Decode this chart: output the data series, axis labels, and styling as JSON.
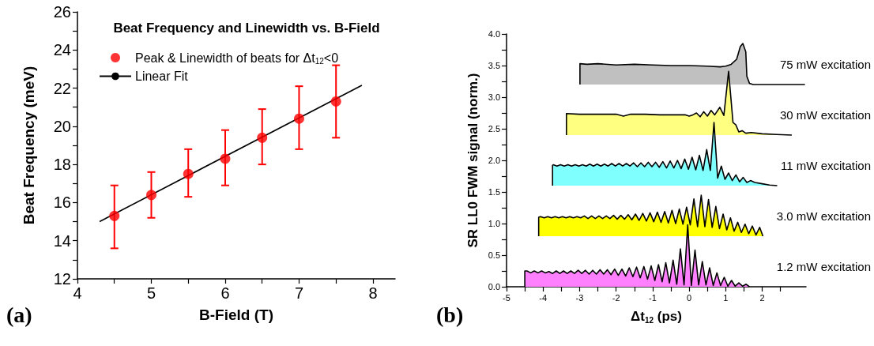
{
  "chart_data": [
    {
      "type": "scatter",
      "title": "Beat Frequency and Linewidth vs. B-Field",
      "xlabel": "B-Field (T)",
      "ylabel": "Beat Frequency (meV)",
      "annotations": [
        "(a)"
      ],
      "x": [
        4.5,
        5.0,
        5.5,
        6.0,
        6.5,
        7.0,
        7.5
      ],
      "series": [
        {
          "name": "Peak & Linewidth of beats for Δt$_{12}$<0",
          "color": "#ff0000",
          "marker": "circle",
          "values": [
            15.3,
            16.4,
            17.5,
            18.3,
            19.4,
            20.4,
            21.3
          ],
          "errors": [
            [
              13.6,
              16.9
            ],
            [
              15.2,
              17.6
            ],
            [
              16.3,
              18.8
            ],
            [
              16.9,
              19.8
            ],
            [
              18.0,
              20.9
            ],
            [
              18.8,
              22.1
            ],
            [
              19.4,
              23.2
            ]
          ]
        },
        {
          "name": "Linear Fit",
          "type": "line",
          "color": "#000000",
          "x": [
            4.3,
            7.85
          ],
          "values": [
            15.0,
            22.15
          ]
        }
      ],
      "xlim": [
        4,
        8.3
      ],
      "xticks": [
        4,
        {
          "value": 4.5,
          "label": null
        },
        5,
        {
          "value": 5.5,
          "label": null
        },
        6,
        {
          "value": 6.5,
          "label": null
        },
        7,
        {
          "value": 7.5,
          "label": null
        },
        8
      ],
      "ylim": [
        12,
        26
      ],
      "yticks": [
        12,
        {
          "value": 13,
          "label": null
        },
        14,
        {
          "value": 15,
          "label": null
        },
        16,
        {
          "value": 17,
          "label": null
        },
        18,
        {
          "value": 19,
          "label": null
        },
        20,
        {
          "value": 21,
          "label": null
        },
        22,
        {
          "value": 23,
          "label": null
        },
        24,
        {
          "value": 25,
          "label": null
        },
        26
      ],
      "legend": "top left",
      "marker": "none",
      "grid": false
    },
    {
      "type": "area",
      "xlabel": "Δt$_{12}$ (ps)",
      "ylabel": "SR LL0 FWM signal (norm.)",
      "annotations": [
        "(b)"
      ],
      "series": [
        {
          "name": "75 mW excitation",
          "color": "#c0c0c0",
          "x": [
            -2.99,
            -2.99,
            -2.8,
            -2.5,
            -2.0,
            -1.5,
            -1.0,
            -0.5,
            0.0,
            0.5,
            0.85,
            1.0,
            1.15,
            1.3,
            1.4,
            1.47,
            1.55,
            1.58,
            1.65,
            1.75,
            2.2,
            3.17
          ],
          "values": [
            3.2,
            3.53,
            3.52,
            3.53,
            3.51,
            3.52,
            3.51,
            3.5,
            3.5,
            3.49,
            3.48,
            3.49,
            3.52,
            3.6,
            3.8,
            3.85,
            3.72,
            3.33,
            3.22,
            3.2,
            3.2,
            3.2
          ]
        },
        {
          "name": "30 mW excitation",
          "color": "#ffff80",
          "x": [
            -3.36,
            -3.36,
            -3.0,
            -2.5,
            -2.0,
            -1.8,
            -1.6,
            -1.2,
            -0.8,
            -0.4,
            -0.1,
            0.0,
            0.1,
            0.2,
            0.3,
            0.4,
            0.5,
            0.6,
            0.7,
            0.84,
            0.95,
            1.08,
            1.2,
            1.28,
            1.36,
            1.45,
            1.55,
            1.7,
            2.0,
            2.4,
            2.81
          ],
          "values": [
            2.4,
            2.74,
            2.73,
            2.73,
            2.73,
            2.7,
            2.73,
            2.73,
            2.72,
            2.72,
            2.72,
            2.7,
            2.72,
            2.75,
            2.69,
            2.77,
            2.7,
            2.79,
            2.72,
            2.84,
            2.71,
            3.41,
            2.6,
            2.56,
            2.45,
            2.47,
            2.43,
            2.44,
            2.42,
            2.41,
            2.4
          ]
        },
        {
          "name": "11 mW excitation",
          "color": "#80ffff",
          "x": [
            -3.74,
            -3.74,
            -3.72,
            -3.62,
            -3.52,
            -3.42,
            -3.32,
            -3.22,
            -3.12,
            -3.02,
            -2.92,
            -2.82,
            -2.72,
            -2.62,
            -2.52,
            -2.42,
            -2.32,
            -2.22,
            -2.12,
            -2.02,
            -1.92,
            -1.82,
            -1.72,
            -1.62,
            -1.52,
            -1.42,
            -1.32,
            -1.22,
            -1.12,
            -1.02,
            -0.92,
            -0.82,
            -0.72,
            -0.62,
            -0.52,
            -0.42,
            -0.32,
            -0.22,
            -0.12,
            -0.02,
            0.08,
            0.18,
            0.28,
            0.38,
            0.48,
            0.58,
            0.68,
            0.78,
            0.88,
            0.98,
            1.08,
            1.18,
            1.28,
            1.38,
            1.48,
            1.58,
            1.68,
            1.8,
            2.0,
            2.2,
            2.41
          ],
          "values": [
            1.6,
            1.92,
            1.93,
            1.91,
            1.93,
            1.91,
            1.93,
            1.91,
            1.93,
            1.91,
            1.93,
            1.91,
            1.94,
            1.91,
            1.94,
            1.91,
            1.94,
            1.91,
            1.95,
            1.91,
            1.95,
            1.91,
            1.95,
            1.91,
            1.96,
            1.9,
            1.96,
            1.9,
            1.97,
            1.9,
            1.97,
            1.89,
            1.98,
            1.88,
            1.99,
            1.88,
            2.0,
            1.87,
            2.02,
            1.86,
            2.05,
            1.85,
            2.08,
            1.84,
            2.17,
            1.84,
            2.6,
            1.72,
            1.91,
            1.7,
            1.8,
            1.68,
            1.77,
            1.66,
            1.73,
            1.65,
            1.68,
            1.65,
            1.63,
            1.61,
            1.6
          ]
        },
        {
          "name": "3.0 mW excitation",
          "color": "#ffff00",
          "x": [
            -4.12,
            -4.12,
            -4.07,
            -3.97,
            -3.87,
            -3.77,
            -3.67,
            -3.57,
            -3.47,
            -3.37,
            -3.27,
            -3.17,
            -3.07,
            -2.97,
            -2.87,
            -2.77,
            -2.67,
            -2.57,
            -2.47,
            -2.37,
            -2.27,
            -2.17,
            -2.07,
            -1.97,
            -1.87,
            -1.77,
            -1.67,
            -1.57,
            -1.47,
            -1.37,
            -1.27,
            -1.17,
            -1.07,
            -0.97,
            -0.87,
            -0.77,
            -0.67,
            -0.57,
            -0.47,
            -0.37,
            -0.27,
            -0.17,
            -0.07,
            0.03,
            0.13,
            0.23,
            0.33,
            0.43,
            0.53,
            0.63,
            0.73,
            0.83,
            0.93,
            1.03,
            1.13,
            1.23,
            1.33,
            1.43,
            1.53,
            1.63,
            1.73,
            1.83,
            1.93,
            2.02
          ],
          "values": [
            0.8,
            1.1,
            1.11,
            1.09,
            1.11,
            1.09,
            1.11,
            1.09,
            1.11,
            1.09,
            1.11,
            1.09,
            1.11,
            1.09,
            1.12,
            1.08,
            1.12,
            1.08,
            1.12,
            1.08,
            1.12,
            1.08,
            1.13,
            1.07,
            1.13,
            1.07,
            1.14,
            1.06,
            1.15,
            1.05,
            1.16,
            1.04,
            1.17,
            1.03,
            1.18,
            1.02,
            1.19,
            1.01,
            1.21,
            1.0,
            1.23,
            0.99,
            1.26,
            0.98,
            1.39,
            0.95,
            1.45,
            0.95,
            1.38,
            0.94,
            1.27,
            0.92,
            1.15,
            0.9,
            1.09,
            0.88,
            1.02,
            0.86,
            0.99,
            0.84,
            0.96,
            0.82,
            0.94,
            0.8
          ]
        },
        {
          "name": "1.2 mW excitation",
          "color": "#ff80ff",
          "x": [
            -4.5,
            -4.5,
            -4.44,
            -4.34,
            -4.24,
            -4.14,
            -4.04,
            -3.94,
            -3.84,
            -3.74,
            -3.64,
            -3.54,
            -3.44,
            -3.34,
            -3.24,
            -3.14,
            -3.04,
            -2.94,
            -2.84,
            -2.74,
            -2.64,
            -2.54,
            -2.44,
            -2.34,
            -2.24,
            -2.14,
            -2.04,
            -1.94,
            -1.84,
            -1.74,
            -1.64,
            -1.54,
            -1.44,
            -1.34,
            -1.24,
            -1.14,
            -1.04,
            -0.94,
            -0.84,
            -0.74,
            -0.64,
            -0.54,
            -0.44,
            -0.34,
            -0.24,
            -0.14,
            -0.04,
            0.06,
            0.16,
            0.26,
            0.36,
            0.46,
            0.56,
            0.66,
            0.76,
            0.86,
            0.96,
            1.06,
            1.16,
            1.26,
            1.36,
            1.46,
            1.56,
            1.65
          ],
          "values": [
            0,
            0.25,
            0.25,
            0.22,
            0.25,
            0.22,
            0.25,
            0.22,
            0.24,
            0.21,
            0.25,
            0.21,
            0.25,
            0.21,
            0.25,
            0.21,
            0.26,
            0.21,
            0.26,
            0.2,
            0.26,
            0.2,
            0.27,
            0.2,
            0.27,
            0.19,
            0.28,
            0.18,
            0.28,
            0.17,
            0.3,
            0.16,
            0.31,
            0.14,
            0.32,
            0.12,
            0.33,
            0.1,
            0.35,
            0.08,
            0.38,
            0.06,
            0.42,
            0.04,
            0.6,
            0.03,
            0.98,
            0.02,
            0.58,
            0.03,
            0.4,
            0.03,
            0.3,
            0.02,
            0.22,
            0.02,
            0.15,
            0.01,
            0.1,
            0.01,
            0.06,
            0.01,
            0.04,
            0
          ]
        }
      ],
      "xlim": [
        -5,
        3.2
      ],
      "xticks": [
        -5,
        {
          "value": -4.5,
          "label": null
        },
        -4,
        {
          "value": -3.5,
          "label": null
        },
        -3,
        {
          "value": -2.5,
          "label": null
        },
        -2,
        {
          "value": -1.5,
          "label": null
        },
        -1,
        {
          "value": -0.5,
          "label": null
        },
        0,
        {
          "value": 0.5,
          "label": null
        },
        1,
        {
          "value": 1.5,
          "label": null
        },
        2,
        {
          "value": 2.5,
          "label": null
        }
      ],
      "ylim": [
        0,
        4
      ],
      "yticks": [
        {
          "value": 0,
          "label": "0.0"
        },
        {
          "value": 0.25,
          "label": null
        },
        0.5,
        {
          "value": 0.75,
          "label": null
        },
        {
          "value": 1,
          "label": "1.0"
        },
        {
          "value": 1.25,
          "label": null
        },
        1.5,
        {
          "value": 1.75,
          "label": null
        },
        {
          "value": 2,
          "label": "2.0"
        },
        {
          "value": 2.25,
          "label": null
        },
        2.5,
        {
          "value": 2.75,
          "label": null
        },
        {
          "value": 3,
          "label": "3.0"
        },
        {
          "value": 3.25,
          "label": null
        },
        3.5,
        {
          "value": 3.75,
          "label": null
        },
        {
          "value": 4,
          "label": "4.0"
        }
      ],
      "marker": "none",
      "grid": false
    }
  ]
}
